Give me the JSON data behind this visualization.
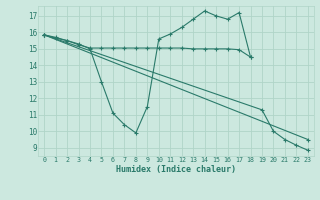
{
  "bg_color": "#cce8df",
  "grid_color": "#b0d4c8",
  "line_color": "#2a7a6a",
  "xlabel": "Humidex (Indice chaleur)",
  "xlim": [
    -0.5,
    23.5
  ],
  "ylim": [
    8.5,
    17.6
  ],
  "yticks": [
    9,
    10,
    11,
    12,
    13,
    14,
    15,
    16,
    17
  ],
  "xticks": [
    0,
    1,
    2,
    3,
    4,
    5,
    6,
    7,
    8,
    9,
    10,
    11,
    12,
    13,
    14,
    15,
    16,
    17,
    18,
    19,
    20,
    21,
    22,
    23
  ],
  "line1_x": [
    0,
    1,
    2,
    3,
    4,
    5,
    6,
    7,
    8,
    9,
    10,
    11,
    12,
    13,
    14,
    15,
    16,
    17,
    18
  ],
  "line1_y": [
    15.85,
    15.7,
    15.5,
    15.3,
    15.0,
    13.0,
    11.1,
    10.4,
    9.9,
    11.5,
    15.6,
    15.9,
    16.3,
    16.8,
    17.3,
    17.0,
    16.8,
    17.2,
    14.5
  ],
  "line2_x": [
    0,
    1,
    2,
    3,
    4,
    5,
    6,
    7,
    8,
    9,
    10,
    11,
    12,
    13,
    14,
    15,
    16,
    17,
    18
  ],
  "line2_y": [
    15.85,
    15.65,
    15.5,
    15.25,
    15.05,
    15.05,
    15.05,
    15.05,
    15.05,
    15.05,
    15.05,
    15.05,
    15.05,
    15.0,
    15.0,
    15.0,
    15.0,
    14.95,
    14.5
  ],
  "line3_x": [
    0,
    23
  ],
  "line3_y": [
    15.85,
    9.5
  ],
  "line4_x": [
    0,
    19,
    20,
    21,
    22,
    23
  ],
  "line4_y": [
    15.85,
    11.3,
    10.0,
    9.5,
    9.15,
    8.85
  ]
}
